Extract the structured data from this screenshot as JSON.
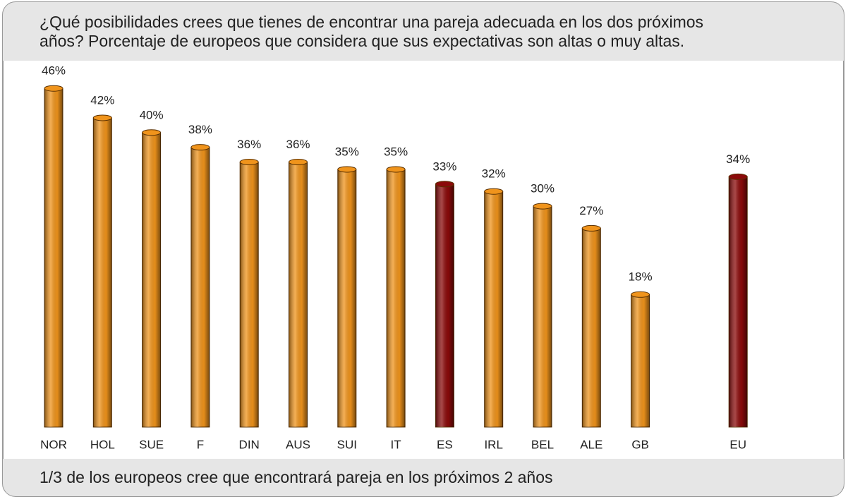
{
  "chart_data": {
    "type": "bar",
    "title": [
      "¿Qué posibilidades crees que tienes de encontrar una pareja adecuada en los dos  próximos",
      "años? Porcentaje de europeos que considera que sus expectativas son altas o muy altas."
    ],
    "footnote": "1/3 de los europeos cree que encontrará pareja en los próximos 2 años",
    "categories": [
      "NOR",
      "HOL",
      "SUE",
      "F",
      "DIN",
      "AUS",
      "SUI",
      "IT",
      "ES",
      "IRL",
      "BEL",
      "ALE",
      "GB",
      null,
      "EU"
    ],
    "values": [
      46,
      42,
      40,
      38,
      36,
      36,
      35,
      35,
      33,
      32,
      30,
      27,
      18,
      null,
      34
    ],
    "value_labels": [
      "46%",
      "42%",
      "40%",
      "38%",
      "36%",
      "36%",
      "35%",
      "35%",
      "33%",
      "32%",
      "30%",
      "27%",
      "18%",
      null,
      "34%"
    ],
    "colors": [
      "#f0941c",
      "#f0941c",
      "#f0941c",
      "#f0941c",
      "#f0941c",
      "#f0941c",
      "#f0941c",
      "#f0941c",
      "#8b0a0a",
      "#f0941c",
      "#f0941c",
      "#f0941c",
      "#f0941c",
      null,
      "#8b0a0a"
    ]
  }
}
